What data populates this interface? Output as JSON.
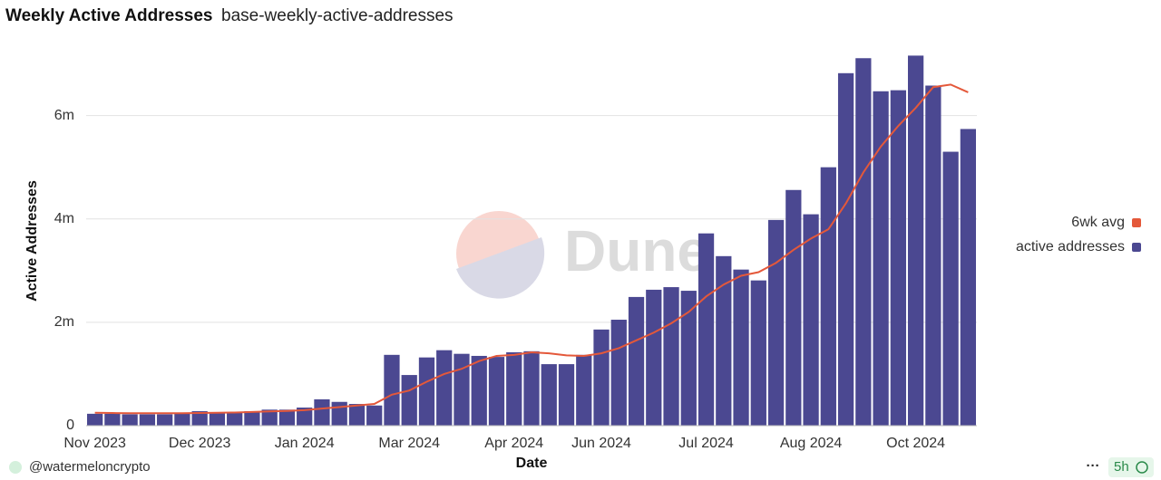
{
  "chart_data": {
    "type": "bar",
    "title": "Weekly Active Addresses",
    "subtitle": "base-weekly-active-addresses",
    "watermark": "Dune",
    "x_label": "Date",
    "y_label": "Active Addresses",
    "categories": [
      "Nov 2023",
      null,
      null,
      null,
      null,
      null,
      "Dec 2023",
      null,
      null,
      null,
      null,
      null,
      "Jan 2024",
      null,
      null,
      null,
      null,
      null,
      "Mar 2024",
      null,
      null,
      null,
      null,
      null,
      "Apr 2024",
      null,
      null,
      null,
      null,
      "Jun 2024",
      null,
      null,
      null,
      null,
      null,
      "Jul 2024",
      null,
      null,
      null,
      null,
      null,
      "Aug 2024",
      null,
      null,
      null,
      null,
      null,
      "Oct 2024",
      null,
      null,
      null
    ],
    "series": [
      {
        "name": "6wk avg",
        "type": "line",
        "color": "#e4583a",
        "values": [
          250000,
          245000,
          240000,
          240000,
          240000,
          240000,
          245000,
          250000,
          255000,
          265000,
          275000,
          285000,
          300000,
          330000,
          360000,
          390000,
          420000,
          600000,
          680000,
          850000,
          1000000,
          1100000,
          1250000,
          1350000,
          1370000,
          1420000,
          1400000,
          1360000,
          1350000,
          1400000,
          1500000,
          1650000,
          1800000,
          1980000,
          2200000,
          2500000,
          2730000,
          2900000,
          2970000,
          3150000,
          3400000,
          3620000,
          3800000,
          4300000,
          4900000,
          5400000,
          5800000,
          6150000,
          6550000,
          6600000,
          6450000
        ]
      },
      {
        "name": "active addresses",
        "type": "bar",
        "color": "#4b4891",
        "values": [
          230000,
          230000,
          220000,
          220000,
          220000,
          230000,
          280000,
          250000,
          250000,
          280000,
          310000,
          310000,
          350000,
          510000,
          460000,
          420000,
          390000,
          1370000,
          980000,
          1320000,
          1460000,
          1390000,
          1350000,
          1330000,
          1420000,
          1440000,
          1190000,
          1190000,
          1370000,
          1860000,
          2050000,
          2490000,
          2630000,
          2680000,
          2610000,
          3720000,
          3280000,
          3020000,
          2810000,
          3980000,
          4560000,
          4090000,
          5000000,
          6820000,
          7110000,
          6470000,
          6490000,
          7160000,
          6580000,
          5300000,
          5740000
        ]
      }
    ],
    "ylim": [
      0,
      7500000
    ],
    "yticks": [
      0,
      {
        "value": 2000000,
        "label": "2m"
      },
      {
        "value": 4000000,
        "label": "4m"
      },
      {
        "value": 6000000,
        "label": "6m"
      }
    ],
    "grid": true,
    "legend": "right"
  },
  "footer": {
    "author": "@watermeloncrypto",
    "menu": "···",
    "age": "5h"
  }
}
